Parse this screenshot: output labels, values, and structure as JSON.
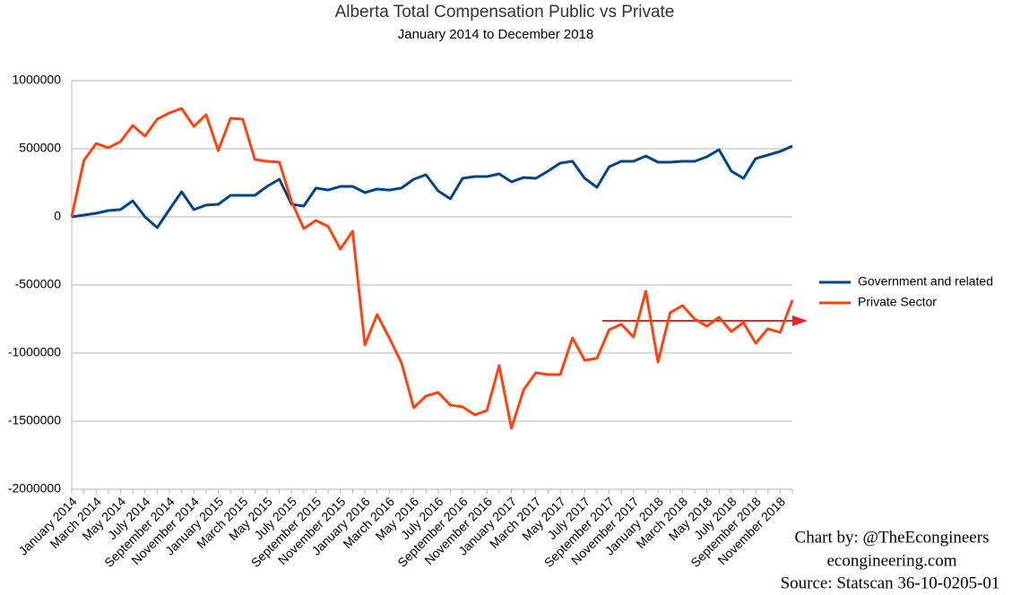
{
  "chart_data": {
    "type": "line",
    "title": "Alberta Total Compensation Public vs Private",
    "subtitle": "January 2014 to December 2018",
    "annotations": [
      "Chart  by: @TheEcongineers",
      "econgineering.com",
      "Source: Statscan 36-10-0205-01"
    ],
    "categories": [
      "January 2014",
      null,
      "March 2014",
      null,
      "May 2014",
      null,
      "July 2014",
      null,
      "September 2014",
      null,
      "November 2014",
      null,
      "January 2015",
      null,
      "March 2015",
      null,
      "May 2015",
      null,
      "July 2015",
      null,
      "September 2015",
      null,
      "November 2015",
      null,
      "January 2016",
      null,
      "March 2016",
      null,
      "May 2016",
      null,
      "July 2016",
      null,
      "September 2016",
      null,
      "November 2016",
      null,
      "January 2017",
      null,
      "March 2017",
      null,
      "May 2017",
      null,
      "July 2017",
      null,
      "September 2017",
      null,
      "November 2017",
      null,
      "January 2018",
      null,
      "March 2018",
      null,
      "May 2018",
      null,
      "July 2018",
      null,
      "September 2018",
      null,
      "November 2018",
      null
    ],
    "series": [
      {
        "name": "Government and related",
        "color": "#004586",
        "values": [
          0,
          13000,
          26000,
          46000,
          53000,
          118000,
          0,
          -79000,
          53000,
          184000,
          53000,
          86000,
          92000,
          158000,
          158000,
          158000,
          224000,
          276000,
          92000,
          79000,
          211000,
          197000,
          224000,
          224000,
          178000,
          204000,
          197000,
          211000,
          276000,
          309000,
          191000,
          132000,
          283000,
          296000,
          296000,
          316000,
          257000,
          289000,
          283000,
          336000,
          395000,
          408000,
          283000,
          217000,
          368000,
          408000,
          408000,
          447000,
          401000,
          401000,
          408000,
          408000,
          441000,
          493000,
          336000,
          283000,
          428000,
          454000,
          480000,
          520000
        ]
      },
      {
        "name": "Private Sector",
        "color": "#ff420e",
        "values": [
          0,
          414000,
          539000,
          507000,
          553000,
          671000,
          592000,
          717000,
          763000,
          796000,
          664000,
          750000,
          487000,
          724000,
          717000,
          421000,
          408000,
          401000,
          112000,
          -86000,
          -26000,
          -72000,
          -237000,
          -105000,
          -941000,
          -717000,
          -888000,
          -1072000,
          -1401000,
          -1316000,
          -1289000,
          -1382000,
          -1395000,
          -1454000,
          -1421000,
          -1092000,
          -1553000,
          -1270000,
          -1145000,
          -1158000,
          -1158000,
          -888000,
          -1053000,
          -1039000,
          -829000,
          -789000,
          -882000,
          -546000,
          -1066000,
          -704000,
          -651000,
          -750000,
          -803000,
          -737000,
          -842000,
          -776000,
          -928000,
          -822000,
          -849000,
          -612000
        ]
      }
    ],
    "ylim": [
      -2000000,
      1000000
    ],
    "yticks": [
      -2000000,
      -1500000,
      -1000000,
      -500000,
      0,
      500000,
      1000000
    ],
    "grid": true,
    "legend": "right"
  }
}
